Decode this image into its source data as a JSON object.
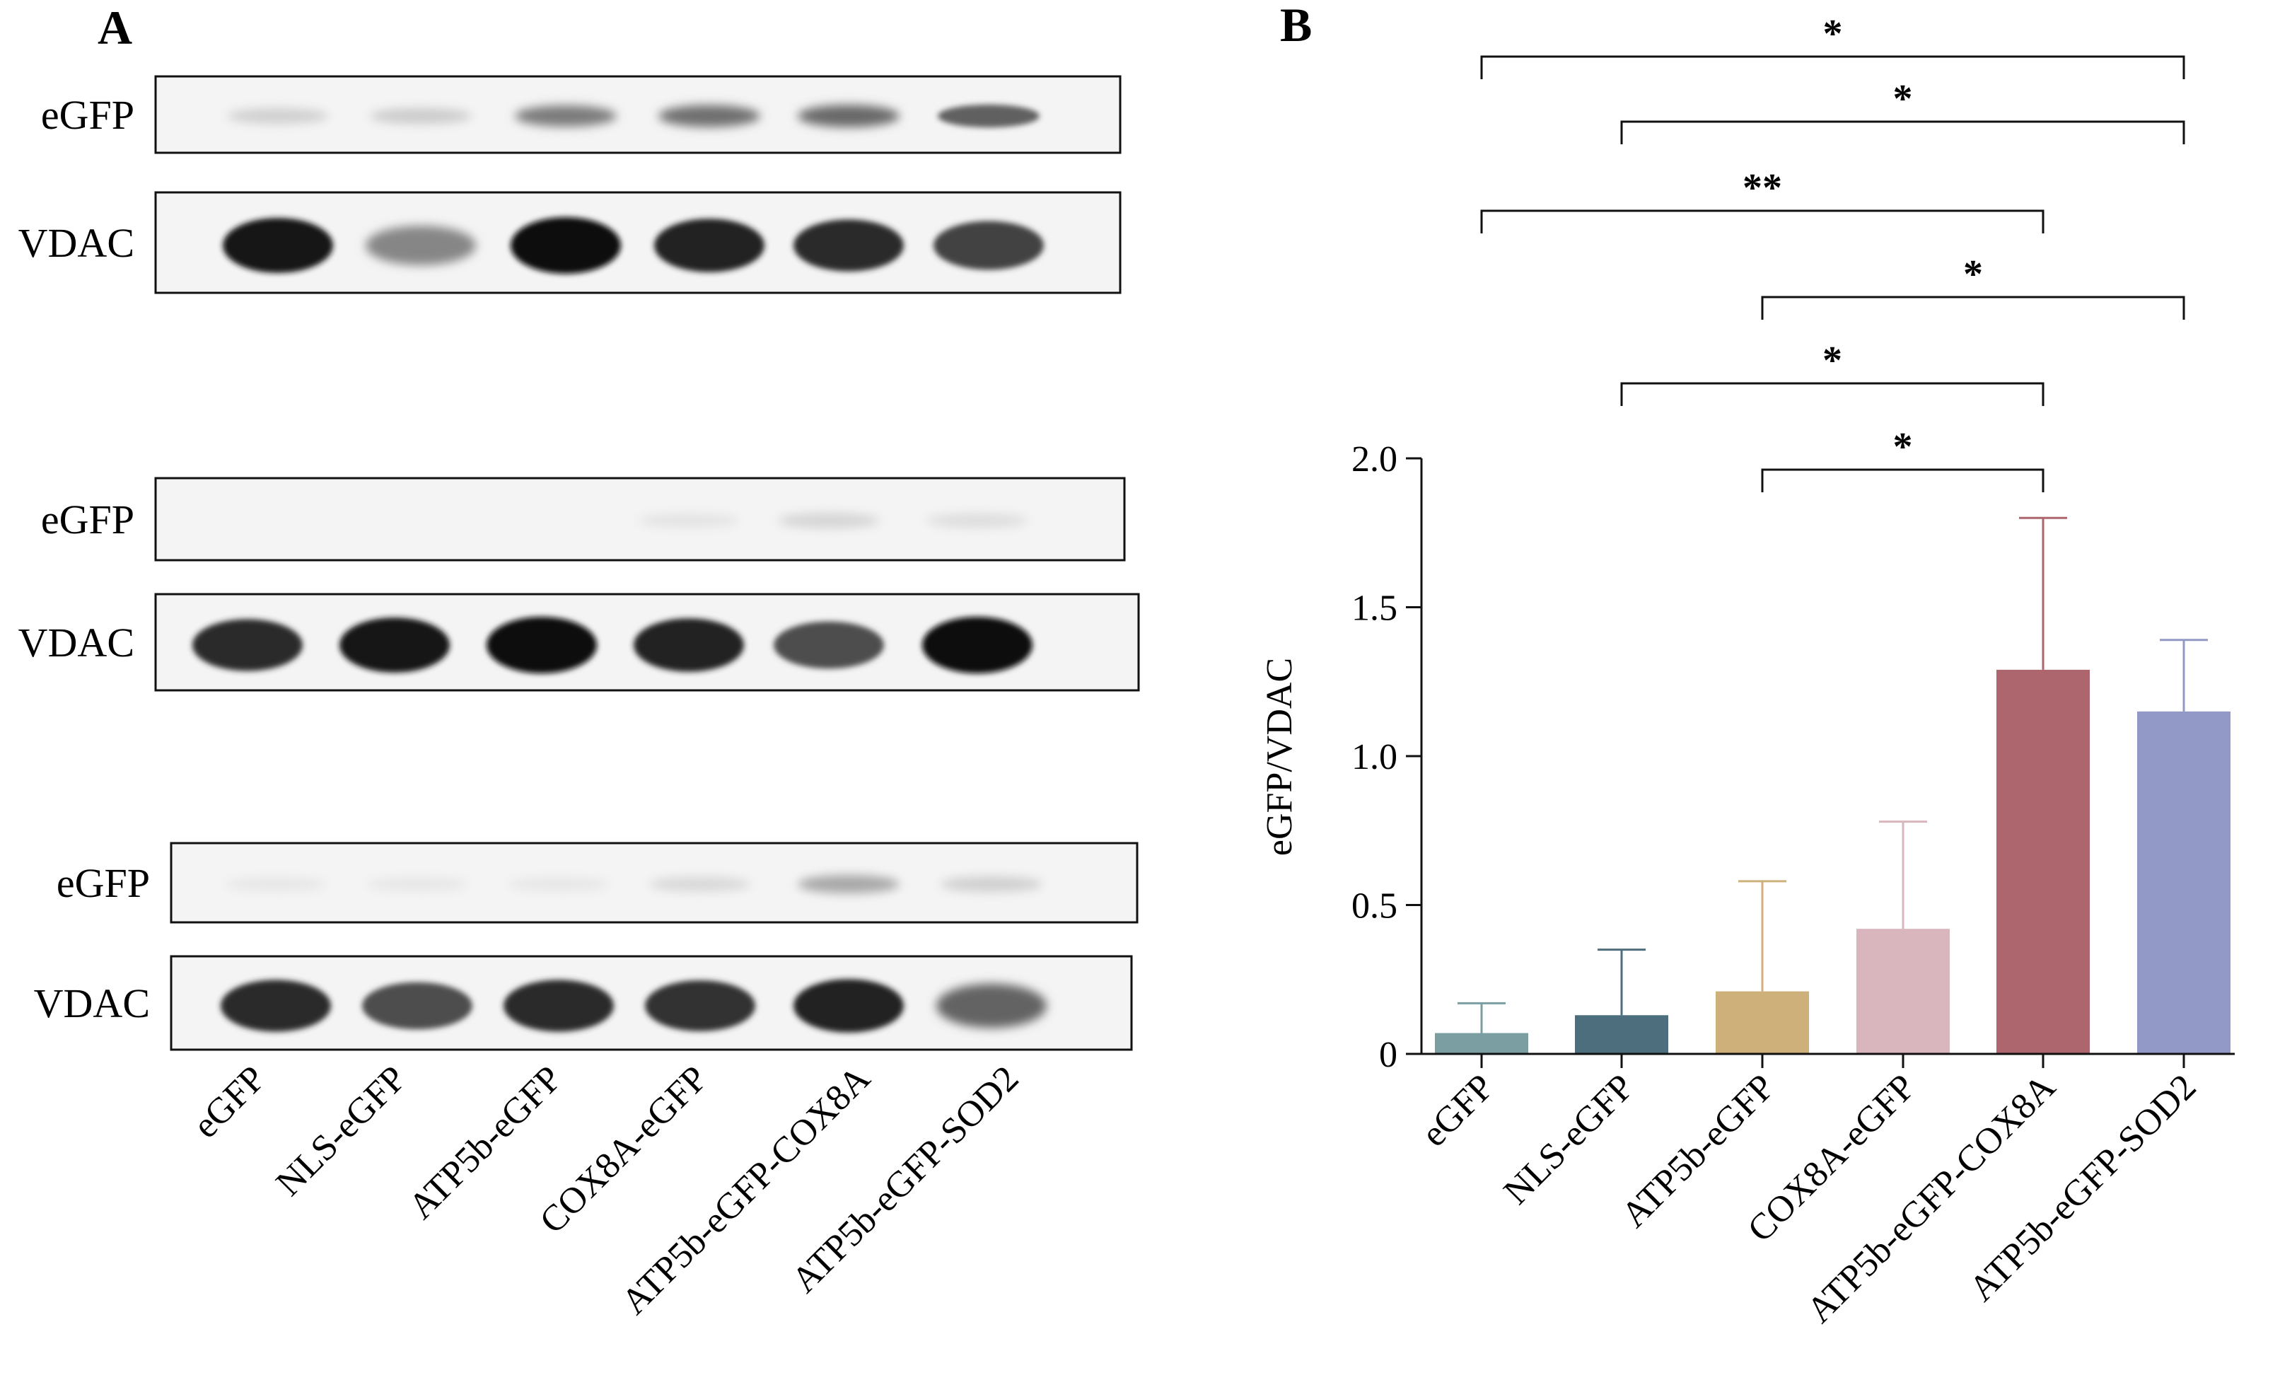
{
  "panel_a": {
    "letter": "A",
    "blots": [
      {
        "rows": [
          {
            "label": "eGFP",
            "intensities": [
              0.12,
              0.14,
              0.5,
              0.55,
              0.58,
              0.62
            ]
          },
          {
            "label": "VDAC",
            "intensities": [
              0.95,
              0.45,
              1.0,
              0.9,
              0.85,
              0.75
            ]
          }
        ]
      },
      {
        "rows": [
          {
            "label": "eGFP",
            "intensities": [
              0.0,
              0.0,
              0.0,
              0.03,
              0.1,
              0.06
            ]
          },
          {
            "label": "VDAC",
            "intensities": [
              0.85,
              0.95,
              1.0,
              0.9,
              0.7,
              1.0
            ]
          }
        ]
      },
      {
        "rows": [
          {
            "label": "eGFP",
            "intensities": [
              0.02,
              0.02,
              0.02,
              0.08,
              0.3,
              0.12
            ]
          },
          {
            "label": "VDAC",
            "intensities": [
              0.85,
              0.7,
              0.85,
              0.82,
              0.9,
              0.6
            ]
          }
        ]
      }
    ],
    "lane_labels": [
      "eGFP",
      "NLS-eGFP",
      "ATP5b-eGFP",
      "COX8A-eGFP",
      "ATP5b-eGFP-COX8A",
      "ATP5b-eGFP-SOD2"
    ]
  },
  "panel_b": {
    "letter": "B"
  },
  "chart_data": {
    "type": "bar",
    "categories": [
      "eGFP",
      "NLS-eGFP",
      "ATP5b-eGFP",
      "COX8A-eGFP",
      "ATP5b-eGFP-COX8A",
      "ATP5b-eGFP-SOD2"
    ],
    "values": [
      0.07,
      0.13,
      0.21,
      0.42,
      1.29,
      1.15
    ],
    "errors": [
      0.1,
      0.22,
      0.37,
      0.36,
      0.51,
      0.24
    ],
    "colors": [
      "#7a9ea2",
      "#4d6e7c",
      "#cdb07a",
      "#d9b5be",
      "#ad666d",
      "#9399c6"
    ],
    "ylabel": "eGFP/VDAC",
    "ylim": [
      0,
      2.0
    ],
    "yticks": [
      0,
      0.5,
      1.0,
      1.5,
      2.0
    ],
    "ytick_labels": [
      "0",
      "0.5",
      "1.0",
      "1.5",
      "2.0"
    ],
    "significance": [
      {
        "from": 0,
        "to": 5,
        "label": "*"
      },
      {
        "from": 1,
        "to": 5,
        "label": "*"
      },
      {
        "from": 0,
        "to": 4,
        "label": "**"
      },
      {
        "from": 2,
        "to": 5,
        "label": "*"
      },
      {
        "from": 1,
        "to": 4,
        "label": "*"
      },
      {
        "from": 2,
        "to": 4,
        "label": "*"
      }
    ]
  }
}
